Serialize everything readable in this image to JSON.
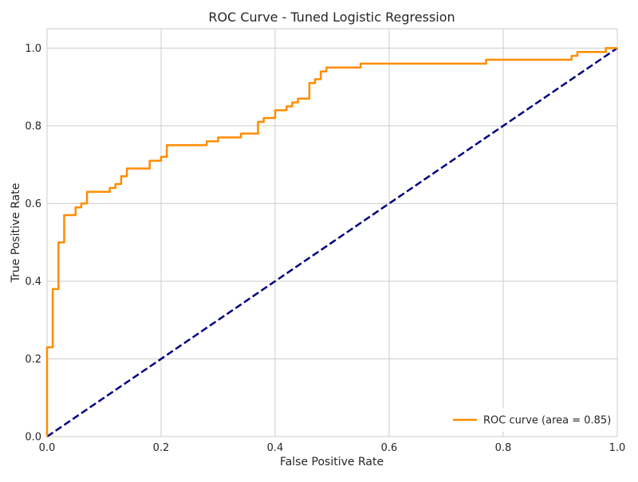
{
  "chart_data": {
    "type": "line",
    "title": "ROC Curve - Tuned Logistic Regression",
    "xlabel": "False Positive Rate",
    "ylabel": "True Positive Rate",
    "xlim": [
      0.0,
      1.0
    ],
    "ylim": [
      0.0,
      1.05
    ],
    "xticks": [
      0.0,
      0.2,
      0.4,
      0.6,
      0.8,
      1.0
    ],
    "xtick_labels": [
      "0.0",
      "0.2",
      "0.4",
      "0.6",
      "0.8",
      "1.0"
    ],
    "yticks": [
      0.0,
      0.2,
      0.4,
      0.6,
      0.8,
      1.0
    ],
    "ytick_labels": [
      "0.0",
      "0.2",
      "0.4",
      "0.6",
      "0.8",
      "1.0"
    ],
    "grid": true,
    "legend_position": "lower-right",
    "series": [
      {
        "name": "ROC curve (area = 0.85)",
        "color": "#ff8c00",
        "style": "solid",
        "x": [
          0.0,
          0.0,
          0.0,
          0.01,
          0.01,
          0.02,
          0.02,
          0.03,
          0.03,
          0.05,
          0.05,
          0.06,
          0.06,
          0.07,
          0.07,
          0.11,
          0.11,
          0.12,
          0.12,
          0.13,
          0.13,
          0.14,
          0.14,
          0.18,
          0.18,
          0.2,
          0.2,
          0.21,
          0.21,
          0.28,
          0.28,
          0.3,
          0.3,
          0.34,
          0.34,
          0.37,
          0.37,
          0.38,
          0.38,
          0.4,
          0.4,
          0.42,
          0.42,
          0.43,
          0.43,
          0.44,
          0.44,
          0.46,
          0.46,
          0.47,
          0.47,
          0.48,
          0.48,
          0.49,
          0.49,
          0.55,
          0.55,
          0.77,
          0.77,
          0.92,
          0.92,
          0.93,
          0.93,
          0.98,
          0.98,
          1.0,
          1.0
        ],
        "y": [
          0.0,
          0.23,
          0.23,
          0.23,
          0.38,
          0.38,
          0.5,
          0.5,
          0.57,
          0.57,
          0.59,
          0.59,
          0.6,
          0.6,
          0.63,
          0.63,
          0.64,
          0.64,
          0.65,
          0.65,
          0.67,
          0.67,
          0.69,
          0.69,
          0.71,
          0.71,
          0.72,
          0.72,
          0.75,
          0.75,
          0.76,
          0.76,
          0.77,
          0.77,
          0.78,
          0.78,
          0.81,
          0.81,
          0.82,
          0.82,
          0.84,
          0.84,
          0.85,
          0.85,
          0.86,
          0.86,
          0.87,
          0.87,
          0.91,
          0.91,
          0.92,
          0.92,
          0.94,
          0.94,
          0.95,
          0.95,
          0.96,
          0.96,
          0.97,
          0.97,
          0.98,
          0.98,
          0.99,
          0.99,
          1.0,
          1.0,
          1.0
        ]
      },
      {
        "name": "",
        "color": "#000080",
        "style": "dashed",
        "x": [
          0.0,
          1.0
        ],
        "y": [
          0.0,
          1.0
        ]
      }
    ]
  }
}
